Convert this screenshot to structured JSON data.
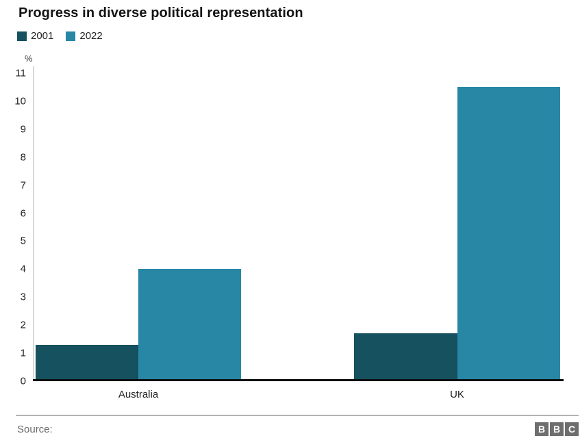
{
  "title": "Progress in diverse political representation",
  "legend": {
    "items": [
      {
        "label": "2001"
      },
      {
        "label": "2022"
      }
    ]
  },
  "footer": {
    "source_label": "Source:",
    "logo_letters": [
      "B",
      "B",
      "C"
    ]
  },
  "colors": {
    "series_2001": "#16515f",
    "series_2022": "#2787a5",
    "axis_line": "#0d0d0d",
    "gridline": "#d8d8d8",
    "muted_text": "#696969",
    "logo_gray": "#6e6e6e"
  },
  "chart_data": {
    "type": "bar",
    "categories": [
      "Australia",
      "UK"
    ],
    "series": [
      {
        "name": "2001",
        "values": [
          1.3,
          1.7
        ],
        "color": "#16515f"
      },
      {
        "name": "2022",
        "values": [
          4.0,
          10.5
        ],
        "color": "#2787a5"
      }
    ],
    "title": "Progress in diverse political representation",
    "xlabel": "",
    "ylabel": "%",
    "ylim": [
      0,
      11
    ],
    "yticks": [
      0,
      1,
      2,
      3,
      4,
      5,
      6,
      7,
      8,
      9,
      10,
      11
    ],
    "grid": false,
    "legend_position": "top-left"
  }
}
